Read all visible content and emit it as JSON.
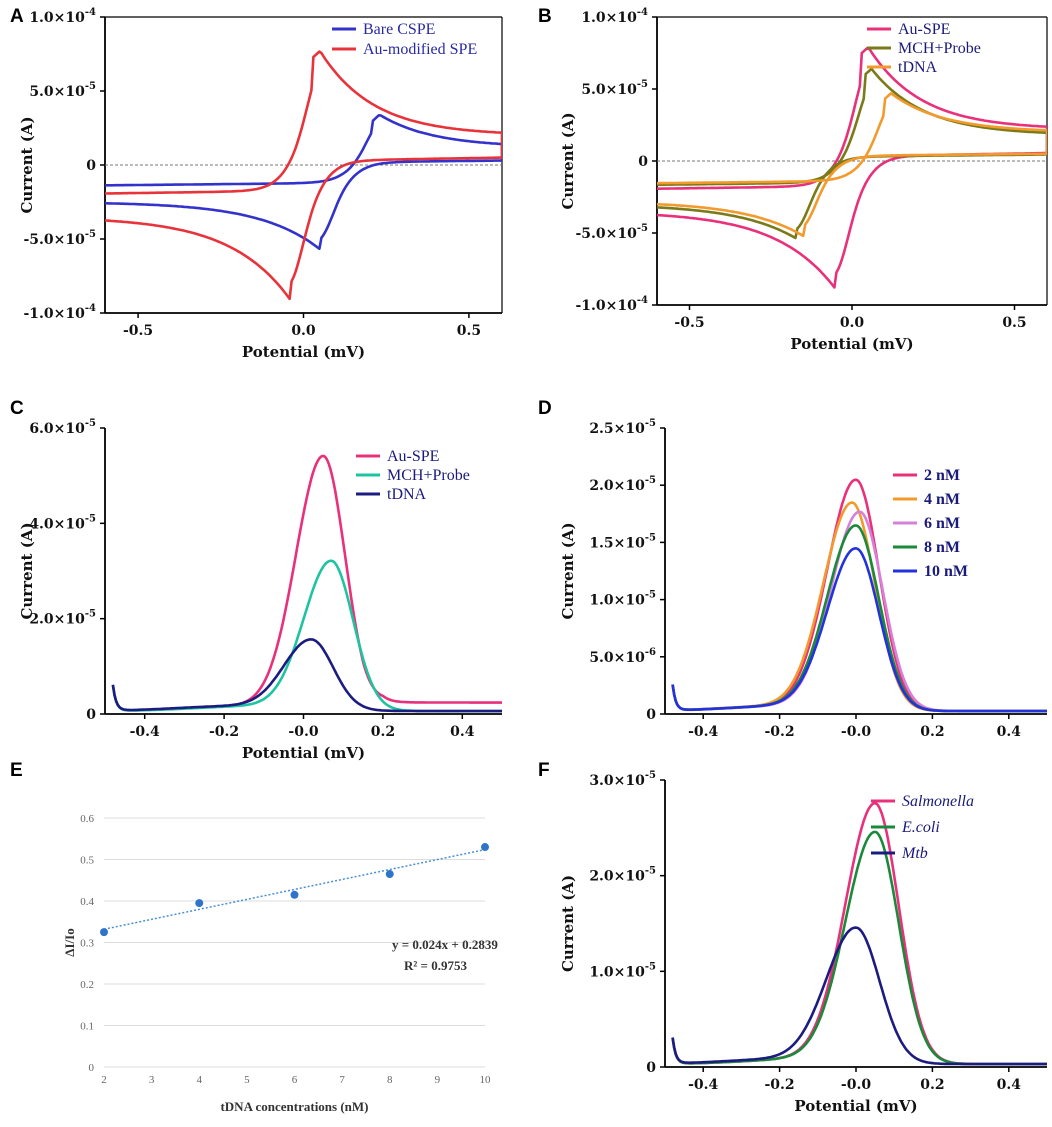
{
  "chart_data": [
    {
      "panel": "A",
      "type": "line",
      "xlabel": "Potential (mV)",
      "ylabel": "Current (A)",
      "xlim": [
        -0.6,
        0.6
      ],
      "ylim": [
        -0.0001,
        0.0001
      ],
      "xticks": [
        -0.5,
        0.0,
        0.5
      ],
      "xtick_labels": [
        "-0.5",
        "0.0",
        "0.5"
      ],
      "yticks": [
        0.0001,
        5e-05,
        0,
        -5e-05,
        -0.0001
      ],
      "ytick_labels": [
        "1.0×10-4",
        "5.0×10-5",
        "0",
        "-5.0×10-5",
        "-1.0×10-4"
      ],
      "zero_line": true,
      "legend_position": "top-right",
      "series": [
        {
          "name": "Bare CSPE",
          "color": "#3333cc",
          "type": "cv",
          "anodic_peak": [
            0.23,
            3.4e-05
          ],
          "cathodic_peak": [
            0.05,
            -5.7e-05
          ],
          "ends": [
            [
              -0.6,
              -2.5e-05
            ],
            [
              0.6,
              1.2e-05
            ]
          ]
        },
        {
          "name": "Au-modified SPE",
          "color": "#e8333b",
          "type": "cv",
          "anodic_peak": [
            0.05,
            7.7e-05
          ],
          "cathodic_peak": [
            -0.04,
            -9.1e-05
          ],
          "ends": [
            [
              -0.6,
              -3.5e-05
            ],
            [
              0.6,
              2e-05
            ]
          ]
        }
      ]
    },
    {
      "panel": "B",
      "type": "line",
      "xlabel": "Potential (mV)",
      "ylabel": "Current (A)",
      "xlim": [
        -0.6,
        0.6
      ],
      "ylim": [
        -0.0001,
        0.0001
      ],
      "xticks": [
        -0.5,
        0.0,
        0.5
      ],
      "xtick_labels": [
        "-0.5",
        "0.0",
        "0.5"
      ],
      "yticks": [
        0.0001,
        5e-05,
        0,
        -5e-05,
        -0.0001
      ],
      "ytick_labels": [
        "1.0×10-4",
        "5.0×10-5",
        "0",
        "-5.0×10-5",
        "-1.0×10-4"
      ],
      "zero_line": true,
      "legend_position": "top-right",
      "series": [
        {
          "name": "Au-SPE",
          "color": "#e8317a",
          "type": "cv",
          "anodic_peak": [
            0.05,
            7.9e-05
          ],
          "cathodic_peak": [
            -0.05,
            -8.9e-05
          ],
          "ends": [
            [
              -0.6,
              -3.5e-05
            ],
            [
              0.6,
              2.2e-05
            ]
          ]
        },
        {
          "name": "MCH+Probe",
          "color": "#7a7a18",
          "type": "cv",
          "anodic_peak": [
            0.06,
            6.4e-05
          ],
          "cathodic_peak": [
            -0.17,
            -5.4e-05
          ],
          "ends": [
            [
              -0.6,
              -3e-05
            ],
            [
              0.6,
              1.8e-05
            ]
          ]
        },
        {
          "name": "tDNA",
          "color": "#f39a2e",
          "type": "cv",
          "anodic_peak": [
            0.12,
            4.7e-05
          ],
          "cathodic_peak": [
            -0.15,
            -5.2e-05
          ],
          "ends": [
            [
              -0.6,
              -2.8e-05
            ],
            [
              0.6,
              2e-05
            ]
          ]
        }
      ]
    },
    {
      "panel": "C",
      "type": "line",
      "xlabel": "Potential (mV)",
      "ylabel": "Current (A)",
      "xlim": [
        -0.5,
        0.5
      ],
      "ylim": [
        0,
        6e-05
      ],
      "xticks": [
        -0.4,
        -0.2,
        0.0,
        0.2,
        0.4
      ],
      "xtick_labels": [
        "-0.4",
        "-0.2",
        "-0.0",
        "0.2",
        "0.4"
      ],
      "yticks": [
        0,
        2e-05,
        4e-05,
        6e-05
      ],
      "ytick_labels": [
        "0",
        "2.0×10-5",
        "4.0×10-5",
        "6.0×10-5"
      ],
      "legend_position": "top-right",
      "series": [
        {
          "name": "Au-SPE",
          "color": "#e8317a",
          "type": "dpv",
          "peak_x": 0.05,
          "peak_y": 5.3e-05,
          "start_x": -0.48
        },
        {
          "name": "MCH+Probe",
          "color": "#1ec4a0",
          "type": "dpv",
          "peak_x": 0.07,
          "peak_y": 3.1e-05,
          "start_x": -0.48
        },
        {
          "name": "tDNA",
          "color": "#1c1c80",
          "type": "dpv",
          "peak_x": 0.02,
          "peak_y": 1.45e-05,
          "start_x": -0.48
        }
      ]
    },
    {
      "panel": "D",
      "type": "line",
      "xlabel": "",
      "ylabel": "Current (A)",
      "xlim": [
        -0.5,
        0.5
      ],
      "ylim": [
        0,
        2.5e-05
      ],
      "xticks": [
        -0.4,
        -0.2,
        0.0,
        0.2,
        0.4
      ],
      "xtick_labels": [
        "-0.4",
        "-0.2",
        "-0.0",
        "0.2",
        "0.4"
      ],
      "yticks": [
        0,
        5e-06,
        1e-05,
        1.5e-05,
        2e-05,
        2.5e-05
      ],
      "ytick_labels": [
        "0",
        "5.0×10-6",
        "1.0×10-5",
        "1.5×10-5",
        "2.0×10-5",
        "2.5×10-5"
      ],
      "legend_position": "right",
      "series": [
        {
          "name": "2 nM",
          "color": "#e8317a",
          "type": "dpv",
          "peak_x": 0.0,
          "peak_y": 2e-05,
          "start_x": -0.48
        },
        {
          "name": "4 nM",
          "color": "#f39a2e",
          "type": "dpv",
          "peak_x": -0.01,
          "peak_y": 1.8e-05,
          "start_x": -0.48
        },
        {
          "name": "6 nM",
          "color": "#d680d8",
          "type": "dpv",
          "peak_x": 0.01,
          "peak_y": 1.72e-05,
          "start_x": -0.48
        },
        {
          "name": "8 nM",
          "color": "#1a8a3a",
          "type": "dpv",
          "peak_x": 0.0,
          "peak_y": 1.6e-05,
          "start_x": -0.48
        },
        {
          "name": "10 nM",
          "color": "#2233dd",
          "type": "dpv",
          "peak_x": 0.0,
          "peak_y": 1.4e-05,
          "start_x": -0.48
        }
      ]
    },
    {
      "panel": "E",
      "type": "scatter",
      "xlabel": "tDNA concentrations (nM)",
      "ylabel": "ΔI/Io",
      "xlim": [
        2,
        10
      ],
      "ylim": [
        0,
        0.6
      ],
      "xticks": [
        2,
        3,
        4,
        5,
        6,
        7,
        8,
        9,
        10
      ],
      "xtick_labels": [
        "2",
        "3",
        "4",
        "5",
        "6",
        "7",
        "8",
        "9",
        "10"
      ],
      "yticks": [
        0,
        0.1,
        0.2,
        0.3,
        0.4,
        0.5,
        0.6
      ],
      "ytick_labels": [
        "0",
        "0.1",
        "0.2",
        "0.3",
        "0.4",
        "0.5",
        "0.6"
      ],
      "grid": "horizontal",
      "x": [
        2,
        4,
        6,
        8,
        10
      ],
      "y": [
        0.325,
        0.395,
        0.415,
        0.465,
        0.53
      ],
      "trendline": {
        "slope": 0.024,
        "intercept": 0.2839
      },
      "equation": "y = 0.024x + 0.2839",
      "r2": "R² = 0.9753"
    },
    {
      "panel": "F",
      "type": "line",
      "xlabel": "Potential (mV)",
      "ylabel": "Current (A)",
      "xlim": [
        -0.5,
        0.5
      ],
      "ylim": [
        0,
        3e-05
      ],
      "xticks": [
        -0.4,
        -0.2,
        0.0,
        0.2,
        0.4
      ],
      "xtick_labels": [
        "-0.4",
        "-0.2",
        "-0.0",
        "0.2",
        "0.4"
      ],
      "yticks": [
        0,
        1e-05,
        2e-05,
        3e-05
      ],
      "ytick_labels": [
        "0",
        "1.0×10-5",
        "2.0×10-5",
        "3.0×10-5"
      ],
      "legend_position": "top-right",
      "legend_italic": true,
      "series": [
        {
          "name": "Salmonella",
          "color": "#e8317a",
          "type": "dpv",
          "peak_x": 0.05,
          "peak_y": 2.7e-05,
          "start_x": -0.48
        },
        {
          "name": "E.coli",
          "color": "#1a8a3a",
          "type": "dpv",
          "peak_x": 0.05,
          "peak_y": 2.4e-05,
          "start_x": -0.48
        },
        {
          "name": "Mtb",
          "color": "#1c1c80",
          "type": "dpv",
          "peak_x": 0.0,
          "peak_y": 1.4e-05,
          "start_x": -0.48
        }
      ]
    }
  ]
}
